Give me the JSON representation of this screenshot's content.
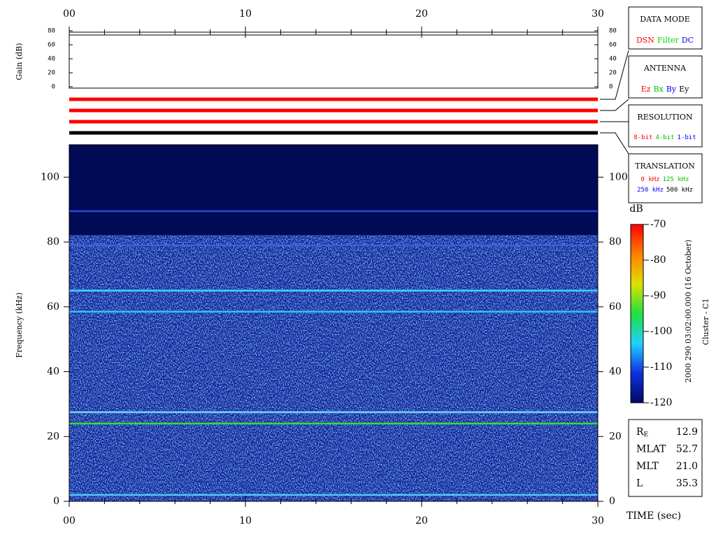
{
  "chart_data": [
    {
      "type": "gain",
      "y_label": "Gain (dB)",
      "xlim": [
        0,
        30
      ],
      "xticks": [
        {
          "value": 0,
          "label": "00"
        },
        10,
        20,
        30
      ],
      "xminorticks": [
        2,
        4,
        6,
        8,
        12,
        14,
        16,
        18,
        22,
        24,
        26,
        28
      ],
      "ylim": [
        0,
        80
      ],
      "yticks": [
        0,
        20,
        40,
        60,
        80
      ]
    },
    {
      "type": "spectrogram",
      "x_label": "TIME (sec)",
      "y_label": "Frequency (kHz)",
      "xlim": [
        0,
        30
      ],
      "xticks": [
        {
          "value": 0,
          "label": "00"
        },
        10,
        20,
        30
      ],
      "xminorticks": [
        2,
        4,
        6,
        8,
        12,
        14,
        16,
        18,
        22,
        24,
        26,
        28
      ],
      "ylim": [
        0,
        110
      ],
      "yticks": [
        0,
        20,
        40,
        60,
        80,
        100
      ],
      "quiet_above": 82,
      "quiet_color": "#000a55",
      "noise_color": "#0a1c8c",
      "emission_lines": [
        {
          "frequency": 89.5,
          "color": "#2a48d8"
        },
        {
          "frequency": 79,
          "color": "#3a60e0"
        },
        {
          "frequency": 65,
          "color": "#40d8ff"
        },
        {
          "frequency": 58.5,
          "color": "#30c4f0"
        },
        {
          "frequency": 27.5,
          "color": "#70d8f0"
        },
        {
          "frequency": 24,
          "color": "#30e030"
        },
        {
          "frequency": 2,
          "color": "#50c8f0"
        }
      ]
    },
    {
      "type": "colorbar",
      "title": "dB",
      "ylim": [
        -120,
        -70
      ],
      "yticks": [
        -70,
        -80,
        -90,
        -100,
        -110,
        -120
      ],
      "colors": [
        "#000a60",
        "#1030e0",
        "#20d0ff",
        "#20e040",
        "#e0e000",
        "#ff8000",
        "#ff0000"
      ]
    }
  ],
  "status_bars": [
    "#ff0000",
    "#ff0000",
    "#ff0000",
    "#000000"
  ],
  "data_mode": {
    "title": "DATA MODE",
    "items": [
      {
        "label": "DSN",
        "color": "#ff0000"
      },
      {
        "label": "Filter",
        "color": "#00e000"
      },
      {
        "label": "DC",
        "color": "#0000ff"
      }
    ]
  },
  "antenna": {
    "title": "ANTENNA",
    "items": [
      {
        "label": "Ez",
        "color": "#ff0000"
      },
      {
        "label": "Bx",
        "color": "#00c000"
      },
      {
        "label": "By",
        "color": "#0000ff"
      },
      {
        "label": "Ey",
        "color": "#000000"
      }
    ]
  },
  "resolution": {
    "title": "RESOLUTION",
    "items": [
      {
        "label": "8-bit",
        "color": "#ff0000"
      },
      {
        "label": "4-bit",
        "color": "#00c000"
      },
      {
        "label": "1-bit",
        "color": "#0000ff"
      }
    ]
  },
  "translation": {
    "title": "TRANSLATION",
    "items": [
      {
        "label": "0 kHz",
        "color": "#ff0000"
      },
      {
        "label": "125 kHz",
        "color": "#00c000"
      },
      {
        "label": "250 kHz",
        "color": "#0000ff"
      },
      {
        "label": "500 kHz",
        "color": "#000000"
      }
    ]
  },
  "timestamp": "2000 290 03:02:00.000 (16 October)",
  "spacecraft": "Cluster - C1",
  "orbit": [
    {
      "label": "R",
      "sub": "E",
      "value": "12.9"
    },
    {
      "label": "MLAT",
      "value": "52.7"
    },
    {
      "label": "MLT",
      "value": "21.0"
    },
    {
      "label": "L",
      "value": "35.3"
    }
  ]
}
